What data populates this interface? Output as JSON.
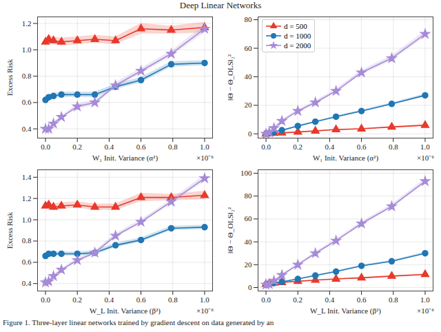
{
  "title": "Deep Linear Networks",
  "caption": "Figure 1. Three-layer linear networks trained by gradient descent on data generated by an",
  "chart_data": [
    {
      "type": "line",
      "x_label": "W₁ Init. Variance (α²)",
      "y_label": "Excess Risk",
      "x": [
        0,
        0.02,
        0.05,
        0.1,
        0.2,
        0.31,
        0.44,
        0.6,
        0.79,
        1.0
      ],
      "xlim": [
        -0.05,
        1.05
      ],
      "xticks": [
        {
          "value": 0,
          "label": "0.0"
        },
        0.2,
        0.4,
        0.6,
        0.8,
        {
          "value": 1,
          "label": "1.0"
        }
      ],
      "ylim": [
        0.33,
        1.25
      ],
      "yticks": [
        0.4,
        0.6,
        0.8,
        {
          "value": 1,
          "label": "1.0"
        },
        1.2
      ],
      "grid": true,
      "annotations": [
        {
          "text": "×10⁻⁶"
        }
      ],
      "series": [
        {
          "color": "#e8392b",
          "marker": "triangle",
          "values": [
            1.06,
            1.08,
            1.07,
            1.06,
            1.07,
            1.08,
            1.07,
            1.16,
            1.15,
            1.17
          ],
          "errors": [
            0.03,
            0.03,
            0.03,
            0.03,
            0.03,
            0.03,
            0.03,
            0.04,
            0.03,
            0.04
          ]
        },
        {
          "color": "#1f77b4",
          "marker": "circle",
          "values": [
            0.62,
            0.64,
            0.65,
            0.66,
            0.66,
            0.66,
            0.72,
            0.77,
            0.89,
            0.9
          ],
          "errors": [
            0.02,
            0.02,
            0.02,
            0.02,
            0.02,
            0.02,
            0.02,
            0.02,
            0.02,
            0.02
          ]
        },
        {
          "color": "#a78bd8",
          "marker": "star",
          "values": [
            0.4,
            0.4,
            0.44,
            0.49,
            0.57,
            0.6,
            0.73,
            0.84,
            0.97,
            1.16
          ],
          "errors": [
            0.01,
            0.01,
            0.01,
            0.01,
            0.02,
            0.02,
            0.02,
            0.02,
            0.02,
            0.03
          ]
        }
      ]
    },
    {
      "type": "line",
      "x_label": "W₁ Init. Variance (α²)",
      "y_label": "‖Θ − Θ_OLS‖₂²",
      "x": [
        0,
        0.02,
        0.05,
        0.1,
        0.2,
        0.31,
        0.44,
        0.6,
        0.79,
        1.0
      ],
      "xlim": [
        -0.05,
        1.05
      ],
      "xticks": [
        {
          "value": 0,
          "label": "0.0"
        },
        0.2,
        0.4,
        0.6,
        0.8,
        {
          "value": 1,
          "label": "1.0"
        }
      ],
      "ylim": [
        -3,
        82
      ],
      "yticks": [
        0,
        20,
        40,
        60,
        80
      ],
      "grid": true,
      "legend": "upper left",
      "annotations": [
        {
          "text": "×10⁻⁶"
        }
      ],
      "series": [
        {
          "name": "d = 500",
          "color": "#e8392b",
          "marker": "triangle",
          "values": [
            0,
            0.2,
            0.4,
            0.7,
            1.3,
            2,
            3,
            3.5,
            4.8,
            6
          ],
          "errors": [
            0.1,
            0.1,
            0.1,
            0.2,
            0.2,
            0.3,
            0.3,
            0.4,
            0.5,
            0.6
          ]
        },
        {
          "name": "d = 1000",
          "color": "#1f77b4",
          "marker": "circle",
          "values": [
            0,
            0.5,
            1.3,
            2.5,
            5.5,
            8.5,
            12,
            16,
            21,
            27
          ],
          "errors": [
            0.1,
            0.1,
            0.2,
            0.3,
            0.4,
            0.5,
            0.6,
            0.7,
            0.8,
            1
          ]
        },
        {
          "name": "d = 2000",
          "color": "#a78bd8",
          "marker": "star",
          "values": [
            0,
            1,
            4,
            9,
            16,
            22,
            30,
            43,
            53,
            70
          ],
          "errors": [
            0.1,
            0.3,
            0.5,
            0.8,
            1,
            1.2,
            1.4,
            1.6,
            1.8,
            2
          ]
        }
      ]
    },
    {
      "type": "line",
      "x_label": "W_L Init. Variance (β²)",
      "y_label": "Excess Risk",
      "x": [
        0,
        0.02,
        0.05,
        0.1,
        0.2,
        0.31,
        0.44,
        0.6,
        0.79,
        1.0
      ],
      "xlim": [
        -0.05,
        1.05
      ],
      "xticks": [
        {
          "value": 0,
          "label": "0.0"
        },
        0.2,
        0.4,
        0.6,
        0.8,
        {
          "value": 1,
          "label": "1.0"
        }
      ],
      "ylim": [
        0.33,
        1.47
      ],
      "yticks": [
        0.4,
        0.6,
        0.8,
        {
          "value": 1,
          "label": "1.0"
        },
        1.2,
        1.4
      ],
      "grid": true,
      "annotations": [
        {
          "text": "×10⁻⁶"
        }
      ],
      "series": [
        {
          "color": "#e8392b",
          "marker": "triangle",
          "values": [
            1.13,
            1.14,
            1.12,
            1.13,
            1.14,
            1.12,
            1.12,
            1.21,
            1.21,
            1.23
          ],
          "errors": [
            0.03,
            0.03,
            0.03,
            0.03,
            0.03,
            0.03,
            0.03,
            0.04,
            0.03,
            0.04
          ]
        },
        {
          "color": "#1f77b4",
          "marker": "circle",
          "values": [
            0.66,
            0.68,
            0.68,
            0.68,
            0.68,
            0.69,
            0.76,
            0.81,
            0.92,
            0.93
          ],
          "errors": [
            0.02,
            0.02,
            0.02,
            0.02,
            0.02,
            0.02,
            0.02,
            0.02,
            0.02,
            0.02
          ]
        },
        {
          "color": "#a78bd8",
          "marker": "star",
          "values": [
            0.41,
            0.42,
            0.47,
            0.53,
            0.62,
            0.69,
            0.85,
            0.98,
            1.17,
            1.39
          ],
          "errors": [
            0.01,
            0.01,
            0.01,
            0.01,
            0.02,
            0.02,
            0.02,
            0.02,
            0.02,
            0.03
          ]
        }
      ]
    },
    {
      "type": "line",
      "x_label": "W_L Init. Variance (β²)",
      "y_label": "‖Θ − Θ_OLS‖₂²",
      "x": [
        0,
        0.02,
        0.05,
        0.1,
        0.2,
        0.31,
        0.44,
        0.6,
        0.79,
        1.0
      ],
      "xlim": [
        -0.05,
        1.05
      ],
      "xticks": [
        {
          "value": 0,
          "label": "0.0"
        },
        0.2,
        0.4,
        0.6,
        0.8,
        {
          "value": 1,
          "label": "1.0"
        }
      ],
      "ylim": [
        -3,
        103
      ],
      "yticks": [
        0,
        20,
        40,
        60,
        80,
        100
      ],
      "grid": true,
      "annotations": [
        {
          "text": "×10⁻⁶"
        }
      ],
      "series": [
        {
          "color": "#e8392b",
          "marker": "triangle",
          "values": [
            3,
            3.5,
            4,
            4.5,
            5.5,
            6.5,
            7.5,
            8.5,
            10,
            11.5
          ],
          "errors": [
            0.3,
            0.3,
            0.3,
            0.4,
            0.4,
            0.5,
            0.5,
            0.6,
            0.6,
            0.7
          ]
        },
        {
          "color": "#1f77b4",
          "marker": "circle",
          "values": [
            2.5,
            3,
            4,
            5,
            7.5,
            10.5,
            14,
            19,
            23,
            30
          ],
          "errors": [
            0.3,
            0.3,
            0.4,
            0.4,
            0.5,
            0.6,
            0.7,
            0.8,
            0.9,
            1
          ]
        },
        {
          "color": "#a78bd8",
          "marker": "star",
          "values": [
            2.5,
            3,
            6,
            11,
            20,
            30,
            41,
            56,
            71,
            93
          ],
          "errors": [
            0.3,
            0.4,
            0.5,
            0.8,
            1,
            1.2,
            1.4,
            1.6,
            1.8,
            2
          ]
        }
      ]
    }
  ]
}
